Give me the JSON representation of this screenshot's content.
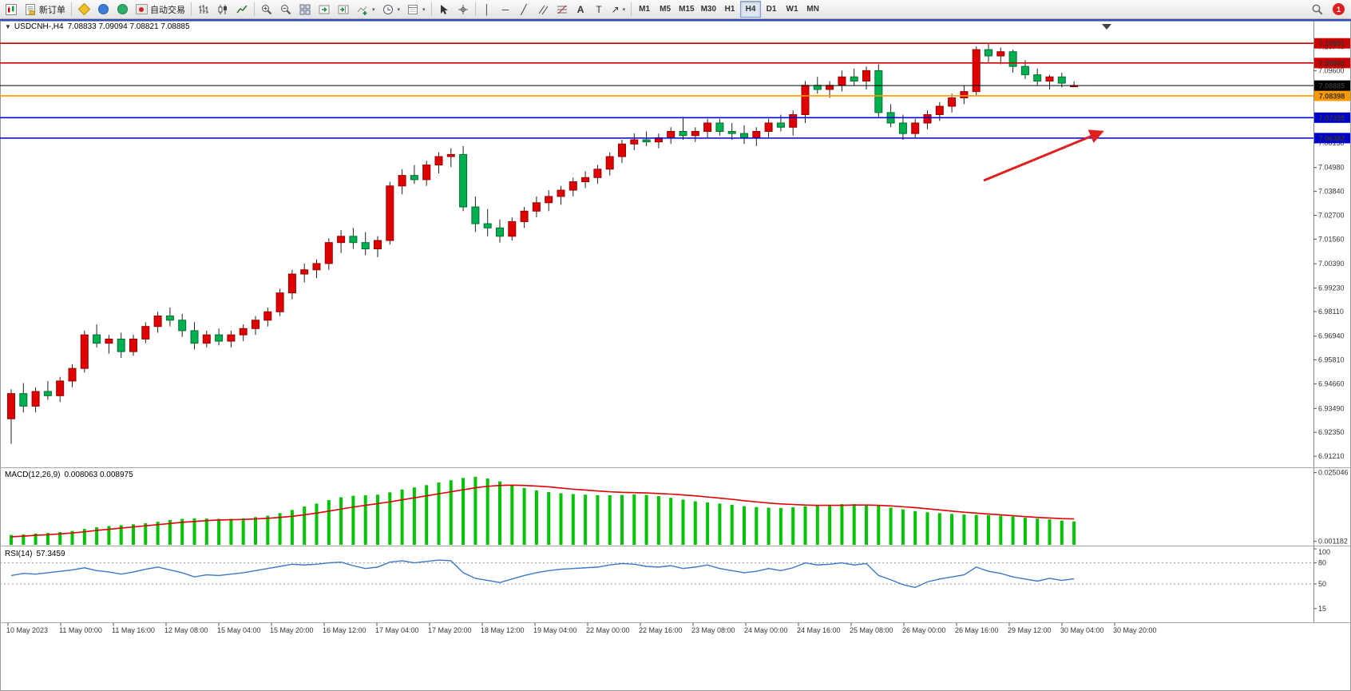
{
  "toolbar": {
    "new_order_label": "新订单",
    "autotrading_label": "自动交易",
    "timeframes": [
      "M1",
      "M5",
      "M15",
      "M30",
      "H1",
      "H4",
      "D1",
      "W1",
      "MN"
    ],
    "active_timeframe": "H4",
    "notification_count": "1",
    "icon_names": [
      "new-chart-icon",
      "new-order-icon",
      "metaeditor-icon",
      "community-icon",
      "market-icon",
      "autotrading-icon",
      "bar-chart-icon",
      "candlestick-chart-icon",
      "line-chart-icon",
      "zoom-in-icon",
      "zoom-out-icon",
      "tile-windows-icon",
      "auto-scroll-icon",
      "chart-shift-icon",
      "indicators-icon",
      "periods-icon",
      "templates-icon",
      "cursor-icon",
      "crosshair-icon",
      "vertical-line-icon",
      "horizontal-line-icon",
      "trendline-icon",
      "equidistant-channel-icon",
      "fibonacci-icon",
      "text-icon",
      "text-label-icon",
      "arrow-tools-icon",
      "search-icon"
    ]
  },
  "chart": {
    "symbol_period": "USDCNH-,H4",
    "ohlc_text": "7.08833 7.09094 7.08821 7.08885"
  },
  "colors": {
    "up_candle": "#e00000",
    "down_candle": "#00b050",
    "wick": "#222222",
    "macd_hist": "#00c400",
    "macd_signal": "#e00000",
    "rsi_line": "#3b78c9",
    "line_red": "#cc0000",
    "line_blue": "#0000cc",
    "line_orange": "#ff9900",
    "current_price": "#000000",
    "arrow": "#e02020"
  },
  "chart_data": {
    "type": "candlestick",
    "symbol": "USDCNH-",
    "timeframe": "H4",
    "title": "USDCNH-,H4 7.08833 7.09094 7.08821 7.08885",
    "current_ohlc": {
      "open": 7.08833,
      "high": 7.09094,
      "low": 7.08821,
      "close": 7.08885
    },
    "ylim": [
      6.9095,
      7.119
    ],
    "price_min": 6.9095,
    "price_max": 7.119,
    "price_axis_ticks": [
      7.1074,
      7.096,
      7.0615,
      7.0498,
      7.0384,
      7.027,
      7.0156,
      7.0039,
      6.9923,
      6.9811,
      6.9694,
      6.9581,
      6.9466,
      6.9349,
      6.9235,
      6.9121
    ],
    "hlines": [
      {
        "price": 7.10901,
        "color": "#cc0000",
        "label": "7.10901"
      },
      {
        "price": 7.09963,
        "color": "#cc0000",
        "label": "7.09963"
      },
      {
        "price": 7.08398,
        "color": "#ff9900",
        "label": "7.08398"
      },
      {
        "price": 7.07355,
        "color": "#0000cc",
        "label": "7.07355"
      },
      {
        "price": 7.06382,
        "color": "#0000cc",
        "label": "7.06382"
      }
    ],
    "current_price": {
      "value": 7.08885,
      "color": "#000000",
      "label": "7.08885"
    },
    "annotation": {
      "type": "arrow",
      "color": "#e02020"
    },
    "candles": [
      [
        6.93,
        6.944,
        6.918,
        6.942
      ],
      [
        6.942,
        6.947,
        6.933,
        6.936
      ],
      [
        6.936,
        6.945,
        6.933,
        6.943
      ],
      [
        6.943,
        6.948,
        6.939,
        6.941
      ],
      [
        6.941,
        6.95,
        6.938,
        6.948
      ],
      [
        6.948,
        6.956,
        6.945,
        6.954
      ],
      [
        6.954,
        6.972,
        6.952,
        6.97
      ],
      [
        6.97,
        6.975,
        6.964,
        6.966
      ],
      [
        6.966,
        6.97,
        6.961,
        6.968
      ],
      [
        6.968,
        6.971,
        6.959,
        6.962
      ],
      [
        6.962,
        6.97,
        6.96,
        6.968
      ],
      [
        6.968,
        6.976,
        6.966,
        6.974
      ],
      [
        6.974,
        6.981,
        6.971,
        6.979
      ],
      [
        6.979,
        6.983,
        6.974,
        6.977
      ],
      [
        6.977,
        6.98,
        6.969,
        6.972
      ],
      [
        6.972,
        6.976,
        6.963,
        6.966
      ],
      [
        6.966,
        6.972,
        6.964,
        6.97
      ],
      [
        6.97,
        6.973,
        6.965,
        6.967
      ],
      [
        6.967,
        6.972,
        6.964,
        6.97
      ],
      [
        6.97,
        6.975,
        6.967,
        6.973
      ],
      [
        6.973,
        6.979,
        6.97,
        6.977
      ],
      [
        6.977,
        6.983,
        6.974,
        6.981
      ],
      [
        6.981,
        6.992,
        6.979,
        6.99
      ],
      [
        6.99,
        7.001,
        6.987,
        6.999
      ],
      [
        6.999,
        7.004,
        6.995,
        7.001
      ],
      [
        7.001,
        7.006,
        6.997,
        7.004
      ],
      [
        7.004,
        7.016,
        7.001,
        7.014
      ],
      [
        7.014,
        7.02,
        7.009,
        7.017
      ],
      [
        7.017,
        7.021,
        7.011,
        7.014
      ],
      [
        7.014,
        7.019,
        7.008,
        7.011
      ],
      [
        7.011,
        7.017,
        7.007,
        7.015
      ],
      [
        7.015,
        7.043,
        7.013,
        7.041
      ],
      [
        7.041,
        7.049,
        7.037,
        7.046
      ],
      [
        7.046,
        7.051,
        7.042,
        7.044
      ],
      [
        7.044,
        7.053,
        7.041,
        7.051
      ],
      [
        7.051,
        7.057,
        7.047,
        7.055
      ],
      [
        7.055,
        7.059,
        7.05,
        7.056
      ],
      [
        7.056,
        7.06,
        7.029,
        7.031
      ],
      [
        7.031,
        7.036,
        7.019,
        7.023
      ],
      [
        7.023,
        7.03,
        7.017,
        7.021
      ],
      [
        7.021,
        7.025,
        7.014,
        7.017
      ],
      [
        7.017,
        7.026,
        7.015,
        7.024
      ],
      [
        7.024,
        7.031,
        7.021,
        7.029
      ],
      [
        7.029,
        7.036,
        7.026,
        7.033
      ],
      [
        7.033,
        7.039,
        7.029,
        7.036
      ],
      [
        7.036,
        7.041,
        7.032,
        7.039
      ],
      [
        7.039,
        7.045,
        7.036,
        7.043
      ],
      [
        7.043,
        7.048,
        7.04,
        7.045
      ],
      [
        7.045,
        7.051,
        7.042,
        7.049
      ],
      [
        7.049,
        7.057,
        7.046,
        7.055
      ],
      [
        7.055,
        7.063,
        7.052,
        7.061
      ],
      [
        7.061,
        7.066,
        7.058,
        7.063
      ],
      [
        7.063,
        7.067,
        7.06,
        7.062
      ],
      [
        7.062,
        7.066,
        7.059,
        7.064
      ],
      [
        7.064,
        7.069,
        7.061,
        7.067
      ],
      [
        7.067,
        7.074,
        7.063,
        7.065
      ],
      [
        7.065,
        7.069,
        7.062,
        7.067
      ],
      [
        7.067,
        7.073,
        7.064,
        7.071
      ],
      [
        7.071,
        7.073,
        7.065,
        7.067
      ],
      [
        7.067,
        7.071,
        7.063,
        7.066
      ],
      [
        7.066,
        7.07,
        7.061,
        7.064
      ],
      [
        7.064,
        7.069,
        7.06,
        7.067
      ],
      [
        7.067,
        7.073,
        7.064,
        7.071
      ],
      [
        7.071,
        7.075,
        7.067,
        7.069
      ],
      [
        7.069,
        7.077,
        7.065,
        7.075
      ],
      [
        7.075,
        7.091,
        7.071,
        7.089
      ],
      [
        7.089,
        7.093,
        7.085,
        7.087
      ],
      [
        7.087,
        7.091,
        7.083,
        7.089
      ],
      [
        7.089,
        7.096,
        7.086,
        7.093
      ],
      [
        7.093,
        7.097,
        7.089,
        7.091
      ],
      [
        7.091,
        7.098,
        7.087,
        7.096
      ],
      [
        7.096,
        7.099,
        7.074,
        7.076
      ],
      [
        7.076,
        7.08,
        7.069,
        7.071
      ],
      [
        7.071,
        7.075,
        7.063,
        7.066
      ],
      [
        7.066,
        7.073,
        7.064,
        7.071
      ],
      [
        7.071,
        7.077,
        7.068,
        7.075
      ],
      [
        7.075,
        7.081,
        7.072,
        7.079
      ],
      [
        7.079,
        7.085,
        7.076,
        7.083
      ],
      [
        7.083,
        7.089,
        7.08,
        7.086
      ],
      [
        7.086,
        7.1075,
        7.084,
        7.106
      ],
      [
        7.106,
        7.109,
        7.1,
        7.103
      ],
      [
        7.103,
        7.107,
        7.099,
        7.105
      ],
      [
        7.105,
        7.106,
        7.095,
        7.098
      ],
      [
        7.098,
        7.101,
        7.092,
        7.094
      ],
      [
        7.094,
        7.097,
        7.089,
        7.091
      ],
      [
        7.091,
        7.094,
        7.087,
        7.093
      ],
      [
        7.093,
        7.095,
        7.088,
        7.09
      ],
      [
        7.0883,
        7.0909,
        7.0882,
        7.0889
      ]
    ],
    "macd": {
      "label": "MACD(12,26,9)",
      "values_text": "0.008063 0.008975",
      "main_value": 0.008063,
      "signal_value": 0.008975,
      "scale_max": 0.0255,
      "axis": [
        {
          "text": "0.025046",
          "value": 0.025046
        },
        {
          "text": "0.001182",
          "value": 0.001182
        }
      ],
      "histogram": [
        0.0034,
        0.0036,
        0.0039,
        0.0041,
        0.0044,
        0.0048,
        0.0055,
        0.0061,
        0.0065,
        0.0068,
        0.0071,
        0.0075,
        0.008,
        0.0086,
        0.009,
        0.0092,
        0.0091,
        0.009,
        0.009,
        0.0092,
        0.0096,
        0.0101,
        0.011,
        0.0121,
        0.0133,
        0.0143,
        0.0155,
        0.0165,
        0.017,
        0.0172,
        0.0174,
        0.0182,
        0.0192,
        0.0199,
        0.0207,
        0.0216,
        0.0224,
        0.0232,
        0.0236,
        0.023,
        0.022,
        0.0208,
        0.0197,
        0.0189,
        0.0183,
        0.0179,
        0.0176,
        0.0174,
        0.0172,
        0.0172,
        0.0173,
        0.0175,
        0.0173,
        0.0169,
        0.0163,
        0.0157,
        0.0151,
        0.0147,
        0.0143,
        0.0139,
        0.0134,
        0.0131,
        0.0129,
        0.0128,
        0.013,
        0.0134,
        0.0137,
        0.0139,
        0.0141,
        0.0141,
        0.0139,
        0.0135,
        0.0129,
        0.0123,
        0.0117,
        0.0113,
        0.011,
        0.0107,
        0.0105,
        0.0104,
        0.0103,
        0.0101,
        0.0098,
        0.0094,
        0.0091,
        0.0088,
        0.0084,
        0.0081
      ],
      "signal": [
        0.0028,
        0.003,
        0.0033,
        0.0035,
        0.0038,
        0.0041,
        0.0045,
        0.005,
        0.0054,
        0.0058,
        0.0062,
        0.0066,
        0.007,
        0.0074,
        0.0078,
        0.0081,
        0.0084,
        0.0086,
        0.0087,
        0.0088,
        0.009,
        0.0092,
        0.0095,
        0.0099,
        0.0104,
        0.011,
        0.0117,
        0.0124,
        0.0131,
        0.0137,
        0.0143,
        0.0149,
        0.0156,
        0.0163,
        0.017,
        0.0177,
        0.0184,
        0.0191,
        0.0198,
        0.0203,
        0.0206,
        0.0207,
        0.0206,
        0.0204,
        0.0201,
        0.0197,
        0.0193,
        0.019,
        0.0187,
        0.0184,
        0.0182,
        0.0181,
        0.018,
        0.0178,
        0.0176,
        0.0173,
        0.017,
        0.0166,
        0.0162,
        0.0158,
        0.0153,
        0.0149,
        0.0145,
        0.0142,
        0.014,
        0.0138,
        0.0137,
        0.0137,
        0.0137,
        0.0138,
        0.0138,
        0.0137,
        0.0135,
        0.0132,
        0.0129,
        0.0125,
        0.0121,
        0.0117,
        0.0113,
        0.011,
        0.0107,
        0.0104,
        0.0101,
        0.0098,
        0.0095,
        0.0093,
        0.0091,
        0.009
      ]
    },
    "rsi": {
      "label": "RSI(14)",
      "value_text": "57.3459",
      "value": 57.3459,
      "levels": [
        80,
        50
      ],
      "axis": [
        100,
        80,
        50,
        15
      ],
      "series": [
        62,
        65,
        64,
        66,
        68,
        70,
        73,
        69,
        67,
        64,
        67,
        71,
        74,
        70,
        66,
        60,
        63,
        62,
        64,
        66,
        69,
        72,
        75,
        78,
        77,
        78,
        80,
        81,
        76,
        72,
        74,
        81,
        83,
        80,
        82,
        84,
        83,
        66,
        58,
        55,
        52,
        57,
        62,
        66,
        69,
        71,
        72,
        73,
        74,
        77,
        79,
        78,
        75,
        74,
        76,
        72,
        74,
        77,
        72,
        69,
        66,
        68,
        72,
        69,
        73,
        80,
        77,
        78,
        80,
        77,
        79,
        62,
        56,
        49,
        45,
        53,
        57,
        60,
        63,
        74,
        68,
        65,
        60,
        57,
        54,
        58,
        55,
        57.3
      ]
    },
    "time_labels": [
      "10 May 2023",
      "11 May 00:00",
      "11 May 16:00",
      "12 May 08:00",
      "15 May 04:00",
      "15 May 20:00",
      "16 May 12:00",
      "17 May 04:00",
      "17 May 20:00",
      "18 May 12:00",
      "19 May 04:00",
      "22 May 00:00",
      "22 May 16:00",
      "23 May 08:00",
      "24 May 00:00",
      "24 May 16:00",
      "25 May 08:00",
      "26 May 00:00",
      "26 May 16:00",
      "29 May 12:00",
      "30 May 04:00",
      "30 May 20:00"
    ]
  }
}
